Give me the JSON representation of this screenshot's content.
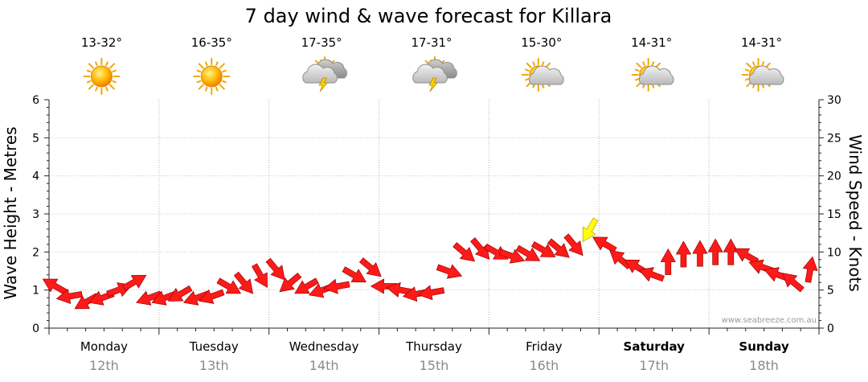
{
  "chart_data": {
    "type": "line",
    "title": "7 day wind & wave forecast for Killara",
    "ylabel": "Wave Height - Metres",
    "y2label": "Wind Speed - Knots",
    "ylim": [
      0,
      6
    ],
    "y2lim": [
      0,
      30
    ],
    "yticks": [
      "0",
      "1",
      "2",
      "3",
      "4",
      "5",
      "6"
    ],
    "y2ticks": [
      "0",
      "5",
      "10",
      "15",
      "20",
      "25",
      "30"
    ],
    "grid": true,
    "days": [
      {
        "day": "Monday",
        "date": "12th",
        "temp": "13-32°",
        "icon": "sun-icon",
        "bold": false
      },
      {
        "day": "Tuesday",
        "date": "13th",
        "temp": "16-35°",
        "icon": "sun-icon",
        "bold": false
      },
      {
        "day": "Wednesday",
        "date": "14th",
        "temp": "17-35°",
        "icon": "storm-icon",
        "bold": false
      },
      {
        "day": "Thursday",
        "date": "15th",
        "temp": "17-31°",
        "icon": "storm-icon",
        "bold": false
      },
      {
        "day": "Friday",
        "date": "16th",
        "temp": "15-30°",
        "icon": "partly-cloudy-icon",
        "bold": false
      },
      {
        "day": "Saturday",
        "date": "17th",
        "temp": "14-31°",
        "icon": "partly-cloudy-icon",
        "bold": true
      },
      {
        "day": "Sunday",
        "date": "18th",
        "temp": "14-31°",
        "icon": "partly-cloudy-icon",
        "bold": true
      }
    ],
    "series": [
      {
        "name": "Wind Speed (knots)",
        "unit": "knots",
        "axis": "right",
        "color": "#ff1a1a",
        "highlight_color": "#ffff00",
        "highlight_threshold": 12.5,
        "x": [
          0,
          0.14,
          0.29,
          0.43,
          0.57,
          0.71,
          0.86,
          1,
          1.14,
          1.29,
          1.43,
          1.57,
          1.71,
          1.86,
          2,
          2.14,
          2.29,
          2.43,
          2.57,
          2.71,
          2.86,
          3,
          3.14,
          3.29,
          3.43,
          3.57,
          3.71,
          3.86,
          4,
          4.14,
          4.29,
          4.43,
          4.57,
          4.71,
          4.86,
          5,
          5.14,
          5.29,
          5.43,
          5.57,
          5.71,
          5.86,
          6,
          6.14,
          6.29,
          6.43,
          6.57,
          6.71,
          6.86
        ],
        "values": [
          5.5,
          4.2,
          3.5,
          4,
          5,
          6,
          4,
          4,
          4.5,
          4,
          4.2,
          5.5,
          6,
          7,
          7.8,
          6,
          5.5,
          5,
          5.5,
          7,
          8,
          5.5,
          5,
          4.5,
          4.7,
          7.5,
          10,
          10.5,
          10,
          9.5,
          9.8,
          10.3,
          10.5,
          11,
          13,
          11,
          9,
          8,
          7,
          8.5,
          9.5,
          9.6,
          9.8,
          9.8,
          9.5,
          8,
          7,
          6,
          7.5
        ],
        "direction_deg": [
          300,
          260,
          240,
          250,
          70,
          60,
          250,
          250,
          240,
          250,
          250,
          120,
          140,
          150,
          140,
          230,
          240,
          250,
          260,
          120,
          130,
          270,
          280,
          260,
          260,
          110,
          130,
          140,
          120,
          110,
          120,
          120,
          130,
          140,
          210,
          300,
          310,
          300,
          290,
          0,
          0,
          0,
          0,
          0,
          300,
          290,
          290,
          310,
          10
        ]
      },
      {
        "name": "Wave Height (m)",
        "unit": "m",
        "axis": "left",
        "values": []
      }
    ]
  },
  "watermark": "www.seabreeze.com.au"
}
